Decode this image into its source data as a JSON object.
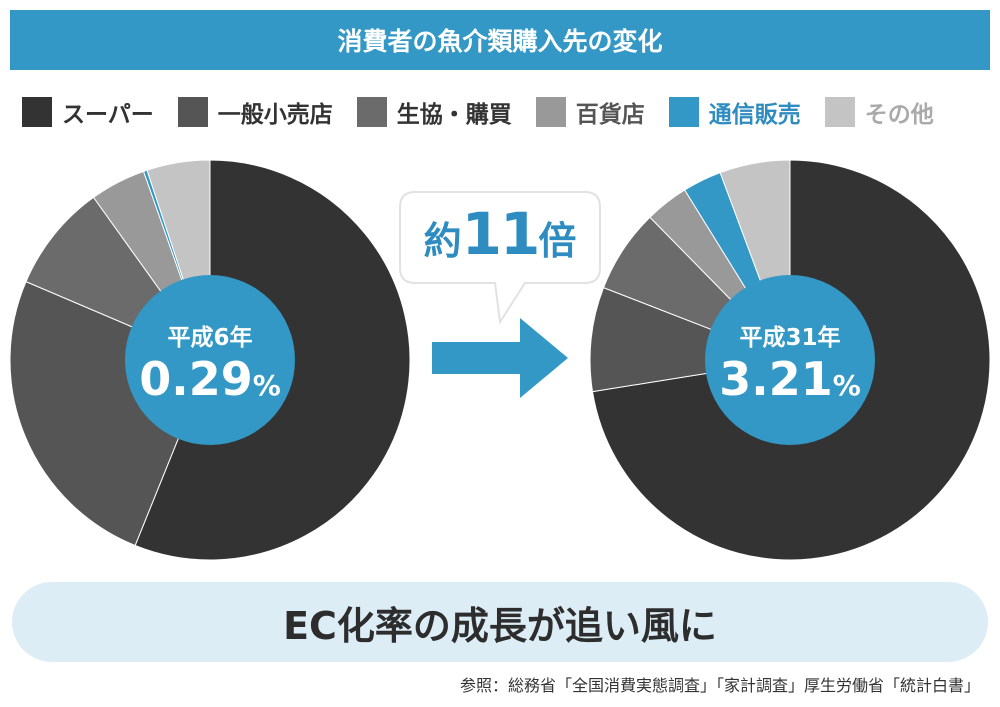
{
  "title": "消費者の魚介類購入先の変化",
  "legend": [
    {
      "label": "スーパー",
      "color": "#333333",
      "text_color": "#333333"
    },
    {
      "label": "一般小売店",
      "color": "#555555",
      "text_color": "#333333"
    },
    {
      "label": "生協・購買",
      "color": "#6b6b6b",
      "text_color": "#333333"
    },
    {
      "label": "百貨店",
      "color": "#999999",
      "text_color": "#555555"
    },
    {
      "label": "通信販売",
      "color": "#3398c5",
      "text_color": "#2f8cc0"
    },
    {
      "label": "その他",
      "color": "#c4c4c4",
      "text_color": "#aaaaaa"
    }
  ],
  "chart_data": [
    {
      "type": "pie",
      "center_label": "平成6年",
      "highlight_value": "0.29",
      "highlight_unit": "%",
      "series": [
        {
          "name": "スーパー",
          "value": 56.1
        },
        {
          "name": "一般小売店",
          "value": 25.3
        },
        {
          "name": "生協・購買",
          "value": 8.7
        },
        {
          "name": "百貨店",
          "value": 4.5
        },
        {
          "name": "通信販売",
          "value": 0.29
        },
        {
          "name": "その他",
          "value": 5.1
        }
      ]
    },
    {
      "type": "pie",
      "center_label": "平成31年",
      "highlight_value": "3.21",
      "highlight_unit": "%",
      "series": [
        {
          "name": "スーパー",
          "value": 74.0
        },
        {
          "name": "一般小売店",
          "value": 8.6
        },
        {
          "name": "生協・購買",
          "value": 6.9
        },
        {
          "name": "百貨店",
          "value": 3.6
        },
        {
          "name": "通信販売",
          "value": 3.21
        },
        {
          "name": "その他",
          "value": 5.8
        }
      ]
    }
  ],
  "callout": {
    "prefix": "約",
    "number": "11",
    "suffix": "倍"
  },
  "banner": "EC化率の成長が追い風に",
  "source": "参照：総務省「全国消費実態調査」「家計調査」厚生労働省「統計白書」",
  "colors": {
    "accent": "#3398c5",
    "banner_bg": "#dcedf6"
  }
}
